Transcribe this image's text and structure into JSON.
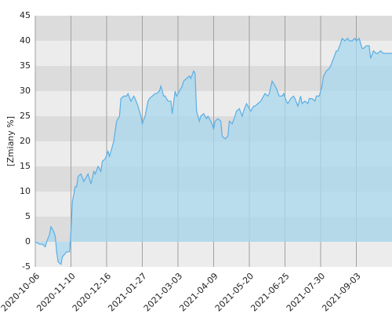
{
  "chart_data": {
    "type": "area",
    "y_label": "[Zmiany %]",
    "x": [
      0,
      3,
      5,
      7,
      8,
      10,
      11,
      13,
      14,
      15,
      16,
      18,
      19,
      22,
      24,
      25,
      26,
      28,
      29,
      30,
      32,
      34,
      36,
      37,
      39,
      41,
      42,
      44,
      46,
      47,
      49,
      51,
      52,
      54,
      55,
      57,
      59,
      60,
      62,
      64,
      65,
      67,
      69,
      70,
      72,
      74,
      75,
      77,
      79,
      80,
      82,
      84,
      85,
      87,
      88,
      90,
      91,
      93,
      95,
      96,
      98,
      99,
      101,
      103,
      104,
      106,
      108,
      109,
      111,
      112,
      113,
      115,
      116,
      118,
      120,
      121,
      123,
      125,
      126,
      128,
      130,
      131,
      133,
      135,
      136,
      138,
      140,
      141,
      143,
      145,
      146,
      148,
      149,
      151,
      153,
      154,
      156,
      158,
      159,
      161,
      163,
      164,
      166,
      168,
      169,
      171,
      173,
      174,
      176,
      177,
      179,
      181,
      182,
      184,
      186,
      187,
      189,
      191,
      192,
      194,
      196,
      197,
      199,
      201,
      202,
      204,
      206,
      207,
      209,
      211,
      212,
      214,
      215,
      217,
      219,
      220,
      222,
      224,
      225,
      227,
      229,
      230,
      232,
      234,
      235,
      237,
      239,
      240,
      242,
      244,
      245,
      247,
      248,
      250
    ],
    "values": [
      0,
      -0.5,
      -0.5,
      -1,
      0,
      1.5,
      3,
      2,
      1,
      -2,
      -4,
      -4.5,
      -3,
      -2,
      -2,
      2,
      8,
      11,
      11,
      13,
      13.5,
      12,
      13,
      13.5,
      11.5,
      14,
      13.5,
      15,
      14,
      16,
      16.5,
      18,
      17,
      19,
      20,
      24,
      25,
      28.5,
      29,
      29,
      29.5,
      28,
      29,
      28.5,
      27,
      25,
      23.5,
      25,
      28,
      28.5,
      29,
      29.5,
      29.5,
      30,
      31,
      29,
      29,
      28,
      28,
      25.5,
      30,
      29,
      30,
      31,
      32,
      32.5,
      33,
      32.5,
      34,
      33.5,
      26,
      24,
      25,
      25.5,
      24.5,
      25,
      24,
      22.5,
      24,
      24.5,
      24,
      21,
      20.5,
      21,
      24,
      23.5,
      25,
      26,
      26.5,
      25,
      26,
      27.5,
      27,
      26,
      27,
      27,
      27.5,
      28,
      28.5,
      29.5,
      29,
      29.5,
      32,
      31,
      30.5,
      29,
      29,
      29.5,
      28,
      27.5,
      28.5,
      29,
      28.5,
      27,
      29,
      27.5,
      28,
      27.5,
      28.5,
      28.5,
      28,
      29,
      29,
      31,
      33,
      34,
      34.5,
      35,
      36.5,
      38,
      38,
      39.5,
      40.5,
      40,
      40.5,
      40,
      40,
      40.5,
      40,
      40.5,
      38.5,
      38.5,
      39,
      39,
      36.5,
      38,
      37.5,
      37.5,
      38,
      37.5,
      37.5,
      37.5,
      37.5,
      37.5
    ],
    "line_color": "#5aaee6",
    "fill_color": "#a8d8ee",
    "xlim": [
      0,
      250
    ],
    "xticks": [
      {
        "value": 0,
        "label": "2020-10-06"
      },
      {
        "value": 25,
        "label": "2020-11-10"
      },
      {
        "value": 50,
        "label": "2020-12-16"
      },
      {
        "value": 75,
        "label": "2021-01-27"
      },
      {
        "value": 100,
        "label": "2021-03-03"
      },
      {
        "value": 125,
        "label": "2021-04-09"
      },
      {
        "value": 150,
        "label": "2021-05-20"
      },
      {
        "value": 175,
        "label": "2021-06-25"
      },
      {
        "value": 200,
        "label": "2021-07-30"
      },
      {
        "value": 225,
        "label": "2021-09-03"
      }
    ],
    "ylim": [
      -5,
      45
    ],
    "yticks": [
      -5,
      0,
      5,
      10,
      15,
      20,
      25,
      30,
      35,
      40,
      45
    ],
    "grid": true
  }
}
